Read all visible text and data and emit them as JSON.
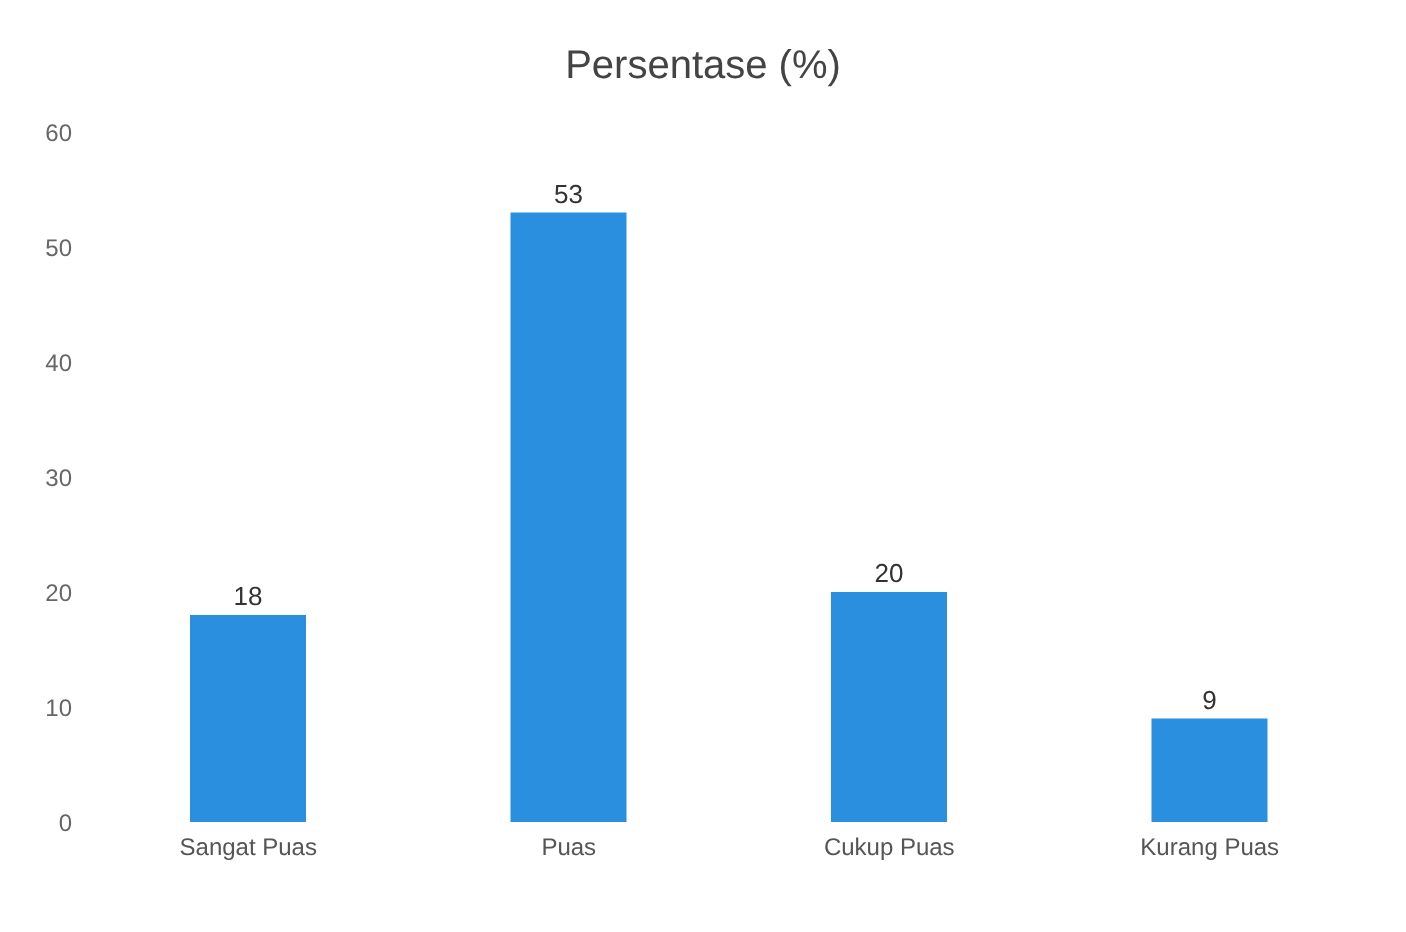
{
  "chart_data": {
    "type": "bar",
    "title": "Persentase (%)",
    "categories": [
      "Sangat Puas",
      "Puas",
      "Cukup Puas",
      "Kurang Puas"
    ],
    "values": [
      18,
      53,
      20,
      9
    ],
    "color": "#2b8fe0",
    "ylim": [
      0,
      60
    ],
    "yticks": [
      0,
      10,
      20,
      30,
      40,
      50,
      60
    ],
    "grid": false,
    "data_labels": true
  }
}
